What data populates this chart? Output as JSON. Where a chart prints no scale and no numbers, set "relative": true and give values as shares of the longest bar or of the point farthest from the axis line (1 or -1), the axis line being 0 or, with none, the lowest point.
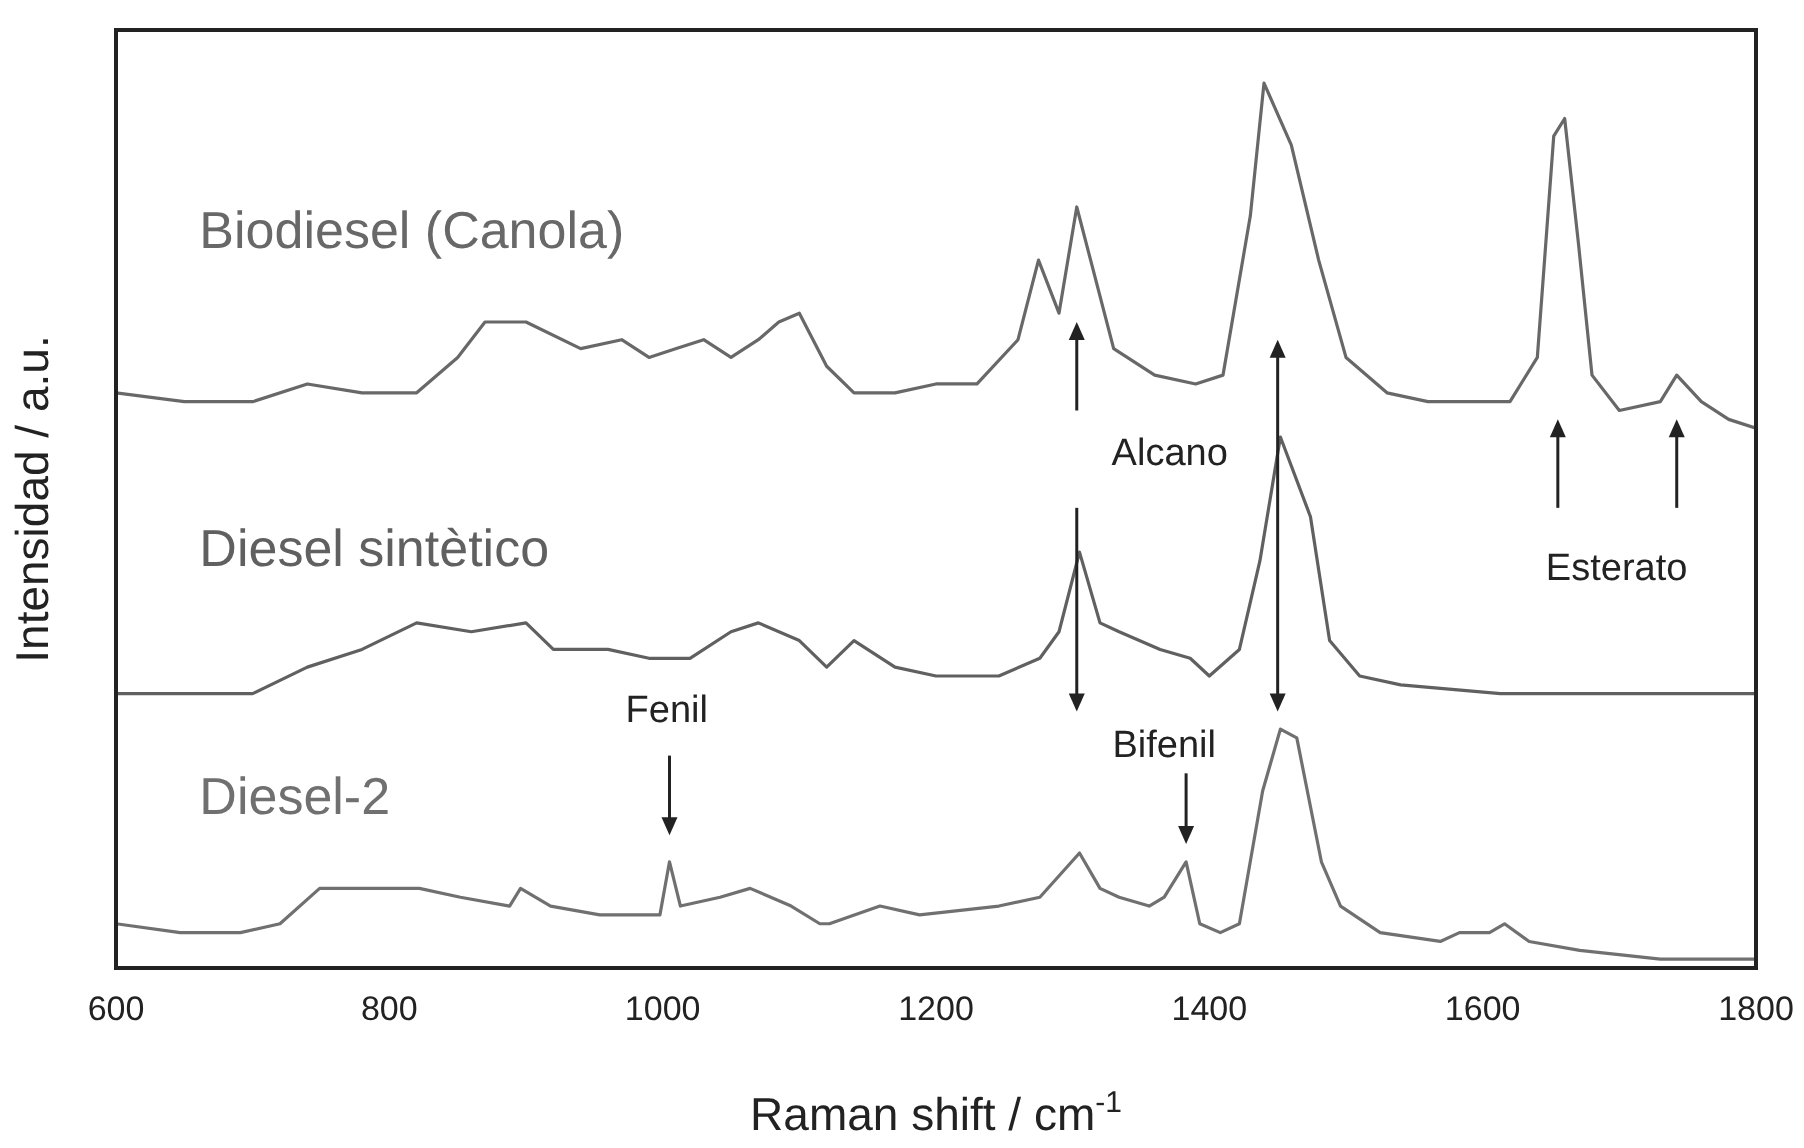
{
  "chart_data": {
    "type": "line",
    "relative": true,
    "xlabel": "Raman shift / cm$^{-1}$",
    "ylabel": "Intensidad / a.u.",
    "xlim": [
      600,
      1800
    ],
    "xticks": [
      600,
      800,
      1000,
      1200,
      1400,
      1600,
      1800
    ],
    "series": [
      {
        "name": "Biodiesel (Canola)",
        "color": "#686868",
        "x": [
          600,
          650,
          700,
          740,
          780,
          820,
          850,
          870,
          900,
          940,
          970,
          990,
          1010,
          1030,
          1050,
          1070,
          1085,
          1100,
          1120,
          1140,
          1170,
          1200,
          1230,
          1260,
          1275,
          1290,
          1303,
          1330,
          1360,
          1390,
          1410,
          1430,
          1440,
          1460,
          1480,
          1500,
          1530,
          1560,
          1620,
          1640,
          1652,
          1660,
          1670,
          1680,
          1700,
          1730,
          1742,
          1760,
          1780,
          1800
        ],
        "values": [
          0.65,
          0.64,
          0.64,
          0.66,
          0.65,
          0.65,
          0.69,
          0.73,
          0.73,
          0.7,
          0.71,
          0.69,
          0.7,
          0.71,
          0.69,
          0.71,
          0.73,
          0.74,
          0.68,
          0.65,
          0.65,
          0.66,
          0.66,
          0.71,
          0.8,
          0.74,
          0.86,
          0.7,
          0.67,
          0.66,
          0.67,
          0.85,
          1.0,
          0.93,
          0.8,
          0.69,
          0.65,
          0.64,
          0.64,
          0.69,
          0.94,
          0.96,
          0.82,
          0.67,
          0.63,
          0.64,
          0.67,
          0.64,
          0.62,
          0.61
        ]
      },
      {
        "name": "Diesel sintètico",
        "color": "#606060",
        "x": [
          600,
          650,
          700,
          740,
          780,
          820,
          860,
          900,
          920,
          960,
          990,
          1020,
          1050,
          1070,
          1100,
          1120,
          1140,
          1170,
          1200,
          1246,
          1276,
          1290,
          1305,
          1320,
          1334,
          1364,
          1386,
          1400,
          1422,
          1437,
          1452,
          1474,
          1488,
          1510,
          1540,
          1613,
          1686,
          1800
        ],
        "values": [
          0.31,
          0.31,
          0.31,
          0.34,
          0.36,
          0.39,
          0.38,
          0.39,
          0.36,
          0.36,
          0.35,
          0.35,
          0.38,
          0.39,
          0.37,
          0.34,
          0.37,
          0.34,
          0.33,
          0.33,
          0.35,
          0.38,
          0.47,
          0.39,
          0.38,
          0.36,
          0.35,
          0.33,
          0.36,
          0.46,
          0.6,
          0.51,
          0.37,
          0.33,
          0.32,
          0.31,
          0.31,
          0.31
        ]
      },
      {
        "name": "Diesel-2",
        "color": "#707070",
        "x": [
          600,
          647,
          691,
          720,
          749,
          771,
          793,
          822,
          852,
          888,
          896,
          918,
          954,
          998,
          1005,
          1013,
          1042,
          1064,
          1094,
          1115,
          1122,
          1159,
          1188,
          1246,
          1276,
          1305,
          1320,
          1334,
          1356,
          1367,
          1383,
          1393,
          1408,
          1422,
          1439,
          1452,
          1464,
          1482,
          1496,
          1525,
          1569,
          1583,
          1605,
          1616,
          1634,
          1671,
          1730,
          1800
        ],
        "values": [
          0.05,
          0.04,
          0.04,
          0.05,
          0.09,
          0.09,
          0.09,
          0.09,
          0.08,
          0.07,
          0.09,
          0.07,
          0.06,
          0.06,
          0.12,
          0.07,
          0.08,
          0.09,
          0.07,
          0.05,
          0.05,
          0.07,
          0.06,
          0.07,
          0.08,
          0.13,
          0.09,
          0.08,
          0.07,
          0.08,
          0.12,
          0.05,
          0.04,
          0.05,
          0.2,
          0.27,
          0.26,
          0.12,
          0.07,
          0.04,
          0.03,
          0.04,
          0.04,
          0.05,
          0.03,
          0.02,
          0.01,
          0.01
        ]
      }
    ],
    "annotations": [
      "Alcano",
      "Esterato",
      "Fenil",
      "Bifenil"
    ]
  }
}
